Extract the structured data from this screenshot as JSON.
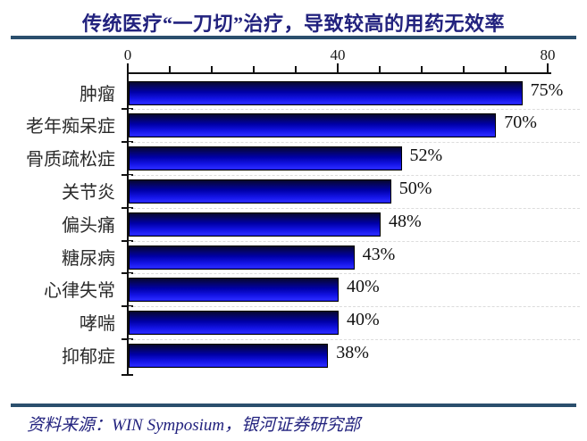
{
  "header": {
    "title": "传统医疗“一刀切”治疗，导致较高的用药无效率"
  },
  "footer": {
    "source": "资料来源：WIN Symposium，银河证券研究部"
  },
  "chart_data": {
    "type": "bar",
    "orientation": "horizontal",
    "title": "传统医疗“一刀切”治疗，导致较高的用药无效率",
    "categories": [
      "肿瘤",
      "老年痴呆症",
      "骨质疏松症",
      "关节炎",
      "偏头痛",
      "糖尿病",
      "心律失常",
      "哮喘",
      "抑郁症"
    ],
    "values": [
      75,
      70,
      52,
      50,
      48,
      43,
      40,
      40,
      38
    ],
    "value_labels": [
      "75%",
      "70%",
      "52%",
      "50%",
      "48%",
      "43%",
      "40%",
      "40%",
      "38%"
    ],
    "xlim": [
      0,
      80
    ],
    "x_tick_labels": [
      "0",
      "40",
      "80"
    ],
    "x_tick_label_values": [
      0,
      40,
      80
    ],
    "minor_tick_step": 8,
    "grid": "horizontal dashed lines between category rows",
    "legend": "none",
    "axis_position": "top",
    "source": "资料来源：WIN Symposium，银河证券研究部",
    "colors": {
      "title_text": "#22227e",
      "divider_rule": "#2b4f6d",
      "bar_gradient_top": "#07072f",
      "bar_gradient_bottom": "#2a2aff",
      "bar_border": "#000000",
      "axis": "#111111",
      "gridline": "#dcdcdc",
      "category_label": "#2b2b2b",
      "value_label": "#111111",
      "source_text": "#22227e"
    }
  }
}
